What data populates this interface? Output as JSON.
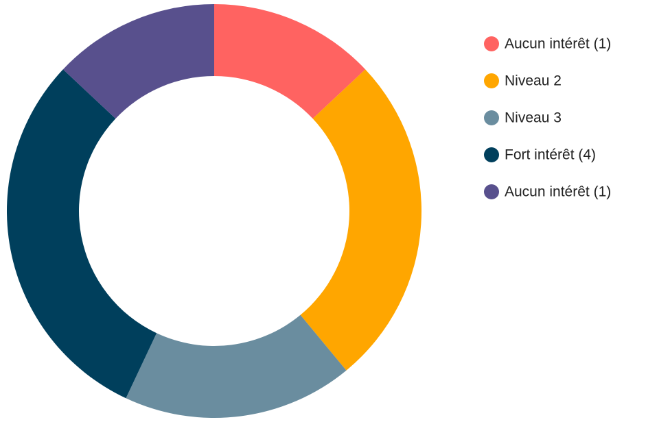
{
  "chart_data": {
    "type": "donut",
    "categories": [
      "Aucun intérêt (1)",
      "Niveau 2",
      "Niveau 3",
      "Fort intérêt (4)",
      "Aucun intérêt (1)"
    ],
    "values": [
      13,
      26,
      18,
      30,
      13
    ],
    "colors": [
      "#ff6361",
      "#ffa600",
      "#6a8d9f",
      "#003f5c",
      "#58508d"
    ],
    "legend": "right"
  }
}
